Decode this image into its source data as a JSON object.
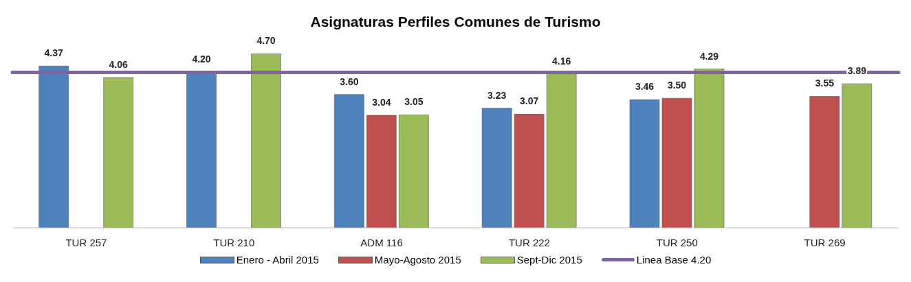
{
  "chart_data": {
    "type": "bar",
    "title": "Asignaturas Perfiles Comunes de Turismo",
    "categories": [
      "TUR 257",
      "TUR 210",
      "ADM 116",
      "TUR 222",
      "TUR 250",
      "TUR 269"
    ],
    "series": [
      {
        "name": "Enero - Abril 2015",
        "color": "#4f81bd",
        "values": [
          4.37,
          4.2,
          3.6,
          3.23,
          3.46,
          null
        ],
        "value_labels": [
          "4.37",
          "4.20",
          "3.60",
          "3.23",
          "3.46",
          null
        ]
      },
      {
        "name": "Mayo-Agosto 2015",
        "color": "#c0504d",
        "values": [
          null,
          null,
          3.04,
          3.07,
          3.5,
          3.55
        ],
        "value_labels": [
          null,
          null,
          "3.04",
          "3.07",
          "3.50",
          "3.55"
        ]
      },
      {
        "name": "Sept-Dic  2015",
        "color": "#9bbb59",
        "values": [
          4.06,
          4.7,
          3.05,
          4.16,
          4.29,
          3.89
        ],
        "value_labels": [
          "4.06",
          "4.70",
          "3.05",
          "4.16",
          "4.29",
          "3.89"
        ]
      }
    ],
    "ref_lines": [
      {
        "axis": "y",
        "value": 4.2,
        "label": "Linea Base 4.20",
        "color": "#8064a2"
      }
    ],
    "legend": "bottom",
    "grid": false
  }
}
